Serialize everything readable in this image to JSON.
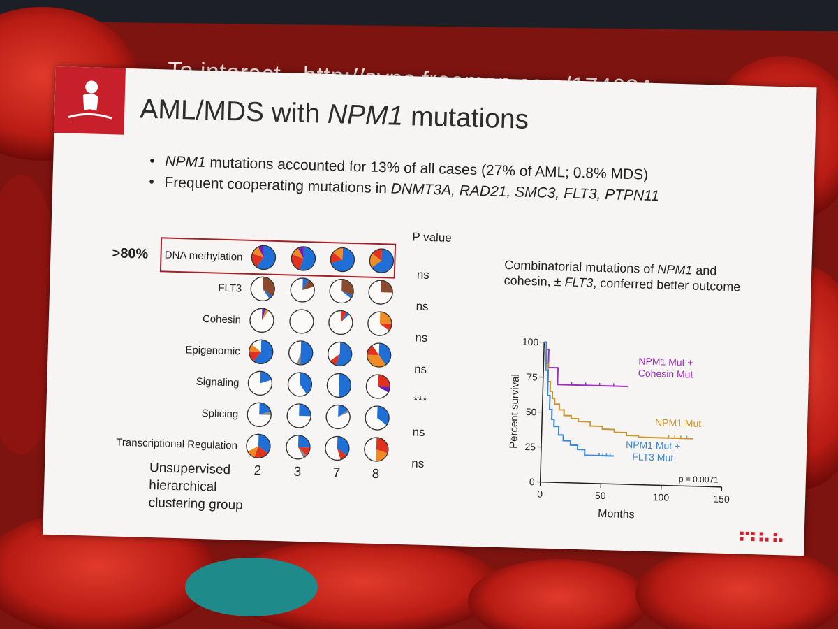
{
  "banner": "To interact - http://sync.freeman.com/17468A",
  "slide": {
    "title_prefix": "AML/MDS with ",
    "title_gene": "NPM1",
    "title_suffix": " mutations",
    "bullets": [
      {
        "gene": "NPM1",
        "text": " mutations accounted for 13% of all cases (27% of AML; 0.8% MDS)"
      },
      {
        "lead": "Frequent cooperating mutations in ",
        "genes": "DNMT3A, RAD21, SMC3, FLT3, PTPN11"
      }
    ],
    "footer_logo_text": "MLL"
  },
  "chart_data": [
    {
      "type": "pie",
      "title": "",
      "highlight_label": ">80%",
      "pvalue_header": "P value",
      "group_axis_label": [
        "Unsupervised",
        "hierarchical",
        "clustering group"
      ],
      "groups": [
        "2",
        "3",
        "7",
        "8"
      ],
      "categories": [
        "DNA methylation",
        "FLT3",
        "Cohesin",
        "Epigenomic",
        "Signaling",
        "Splicing",
        "Transcriptional Regulation"
      ],
      "p_values": [
        "ns",
        "ns",
        "ns",
        "ns",
        "***",
        "ns",
        "ns"
      ],
      "colors": {
        "blue": "#1f6fd6",
        "red": "#e0321e",
        "orange": "#f08a24",
        "brown": "#8b4a2e",
        "purple": "#6a1fb5",
        "gray": "#8a8a8a"
      },
      "rows": [
        [
          [
            [
              "blue",
              0.6
            ],
            [
              "red",
              0.2
            ],
            [
              "orange",
              0.12
            ],
            [
              "purple",
              0.08
            ]
          ],
          [
            [
              "blue",
              0.55
            ],
            [
              "red",
              0.25
            ],
            [
              "orange",
              0.12
            ],
            [
              "purple",
              0.08
            ]
          ],
          [
            [
              "blue",
              0.7
            ],
            [
              "red",
              0.15
            ],
            [
              "orange",
              0.15
            ]
          ],
          [
            [
              "blue",
              0.65
            ],
            [
              "orange",
              0.2
            ],
            [
              "red",
              0.15
            ]
          ]
        ],
        [
          [
            [
              "brown",
              0.35
            ],
            [
              "blue",
              0.05
            ]
          ],
          [
            [
              "blue",
              0.08
            ],
            [
              "brown",
              0.12
            ]
          ],
          [
            [
              "brown",
              0.3
            ],
            [
              "blue",
              0.05
            ]
          ],
          [
            [
              "brown",
              0.25
            ]
          ]
        ],
        [
          [
            [
              "purple",
              0.05
            ],
            [
              "orange",
              0.04
            ]
          ],
          [],
          [
            [
              "red",
              0.08
            ],
            [
              "blue",
              0.04
            ]
          ],
          [
            [
              "orange",
              0.25
            ],
            [
              "red",
              0.1
            ]
          ]
        ],
        [
          [
            [
              "blue",
              0.6
            ],
            [
              "red",
              0.15
            ],
            [
              "orange",
              0.1
            ]
          ],
          [
            [
              "blue",
              0.5
            ],
            [
              "gray",
              0.05
            ]
          ],
          [
            [
              "blue",
              0.55
            ],
            [
              "red",
              0.1
            ]
          ],
          [
            [
              "blue",
              0.4
            ],
            [
              "orange",
              0.35
            ],
            [
              "red",
              0.15
            ]
          ]
        ],
        [
          [
            [
              "blue",
              0.2
            ]
          ],
          [
            [
              "blue",
              0.4
            ]
          ],
          [
            [
              "blue",
              0.5
            ]
          ],
          [
            [
              "red",
              0.25
            ],
            [
              "purple",
              0.08
            ]
          ]
        ],
        [
          [
            [
              "blue",
              0.2
            ],
            [
              "gray",
              0.05
            ]
          ],
          [
            [
              "blue",
              0.25
            ]
          ],
          [
            [
              "blue",
              0.15
            ],
            [
              "gray",
              0.03
            ]
          ],
          [
            [
              "blue",
              0.35
            ]
          ]
        ],
        [
          [
            [
              "blue",
              0.35
            ],
            [
              "red",
              0.2
            ],
            [
              "orange",
              0.12
            ]
          ],
          [
            [
              "blue",
              0.25
            ],
            [
              "red",
              0.12
            ],
            [
              "gray",
              0.05
            ]
          ],
          [
            [
              "blue",
              0.35
            ],
            [
              "red",
              0.1
            ]
          ],
          [
            [
              "red",
              0.3
            ],
            [
              "orange",
              0.2
            ]
          ]
        ]
      ]
    },
    {
      "type": "line",
      "title": "Combinatorial mutations of NPM1 and cohesin, ± FLT3, conferred better outcome",
      "caption_parts": [
        "Combinatorial mutations of ",
        "NPM1",
        " and cohesin, ± ",
        "FLT3",
        ", conferred better outcome"
      ],
      "xlabel": "Months",
      "ylabel": "Percent survival",
      "xlim": [
        0,
        150
      ],
      "ylim": [
        0,
        100
      ],
      "xticks": [
        0,
        50,
        100,
        150
      ],
      "yticks": [
        0,
        25,
        50,
        75,
        100
      ],
      "annotation": "p = 0.0071",
      "series": [
        {
          "label_lines": [
            "NPM1 Mut +",
            "Cohesin Mut"
          ],
          "color": "#9b2fc0",
          "x": [
            0,
            2,
            4,
            12,
            12,
            70
          ],
          "y": [
            100,
            95,
            82,
            82,
            70,
            70
          ]
        },
        {
          "label_lines": [
            "NPM1 Mut"
          ],
          "color": "#c9952b",
          "x": [
            0,
            2,
            4,
            6,
            8,
            10,
            14,
            18,
            24,
            30,
            40,
            50,
            60,
            70,
            80,
            90,
            100,
            125
          ],
          "y": [
            100,
            85,
            72,
            65,
            60,
            56,
            52,
            48,
            46,
            44,
            41,
            39,
            37,
            35,
            34,
            34,
            34,
            34
          ]
        },
        {
          "label_lines": [
            "NPM1 Mut +",
            "FLT3 Mut"
          ],
          "color": "#3a86d4",
          "x": [
            0,
            2,
            4,
            6,
            8,
            10,
            14,
            18,
            24,
            30,
            36,
            45,
            60
          ],
          "y": [
            100,
            80,
            62,
            52,
            45,
            40,
            34,
            30,
            27,
            24,
            20,
            20,
            20
          ]
        }
      ]
    }
  ]
}
